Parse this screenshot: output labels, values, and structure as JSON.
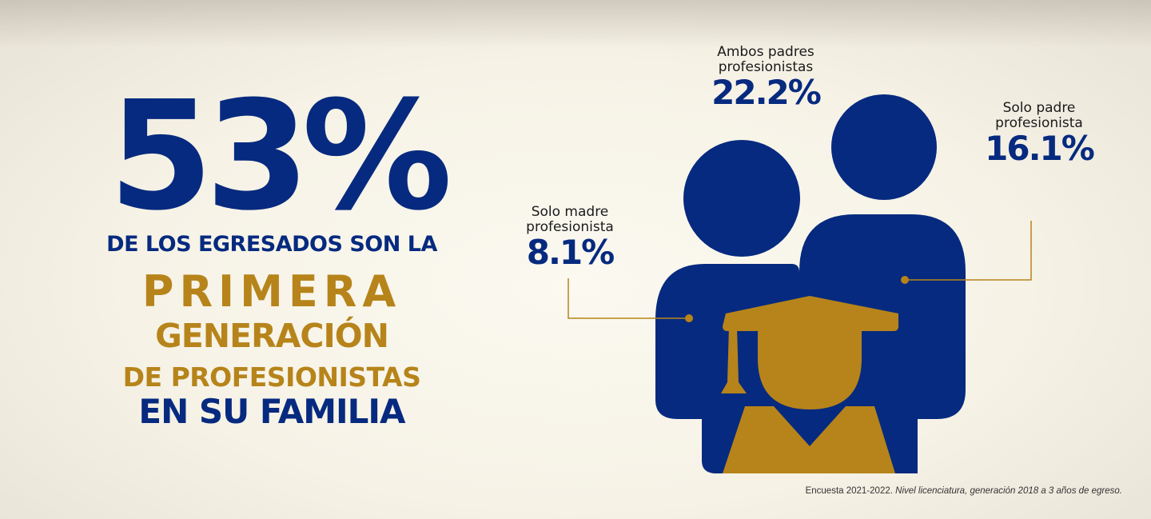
{
  "headline": {
    "percent": "53%",
    "line1": "DE LOS EGRESADOS SON LA",
    "line2": "PRIMERA",
    "line3": "GENERACIÓN",
    "line4": "DE PROFESIONISTAS",
    "line5": "EN SU FAMILIA"
  },
  "stats": {
    "both": {
      "label1": "Ambos padres",
      "label2": "profesionistas",
      "value": "22.2%"
    },
    "father": {
      "label1": "Solo padre",
      "label2": "profesionista",
      "value": "16.1%"
    },
    "mother": {
      "label1": "Solo madre",
      "label2": "profesionista",
      "value": "8.1%"
    }
  },
  "footnote": {
    "plain": "Encuesta 2021-2022.",
    "italic": "Nivel licenciatura, generación 2018 a 3 años de egreso."
  },
  "colors": {
    "navy": "#062a7f",
    "gold": "#b6841a"
  },
  "icons": [
    "parents-silhouette-icon",
    "graduate-cap-icon"
  ]
}
